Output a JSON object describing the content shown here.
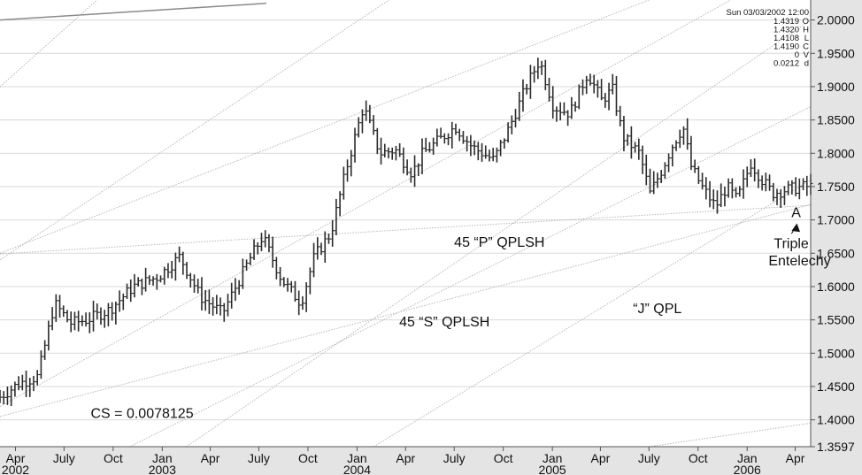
{
  "chart_data": {
    "type": "bar",
    "subtype": "ohlc",
    "y_axis": {
      "position": "right",
      "ylim": [
        1.3597,
        2.03
      ],
      "ticks": [
        "2.0000",
        "1.9500",
        "1.9000",
        "1.8500",
        "1.8000",
        "1.7500",
        "1.7000",
        "1.6500",
        "1.6000",
        "1.5500",
        "1.5000",
        "1.4500",
        "1.4000",
        "1.3597"
      ],
      "tick_values": [
        2.0,
        1.95,
        1.9,
        1.85,
        1.8,
        1.75,
        1.7,
        1.65,
        1.6,
        1.55,
        1.5,
        1.45,
        1.4,
        1.3597
      ]
    },
    "x_axis": {
      "date_range": [
        "2002-03-03",
        "2006-04-30"
      ],
      "month_ticks": [
        {
          "label": "Apr",
          "date": "2002-04-01"
        },
        {
          "label": "July",
          "date": "2002-07-01"
        },
        {
          "label": "Oct",
          "date": "2002-10-01"
        },
        {
          "label": "Jan",
          "date": "2003-01-01"
        },
        {
          "label": "Apr",
          "date": "2003-04-01"
        },
        {
          "label": "July",
          "date": "2003-07-01"
        },
        {
          "label": "Oct",
          "date": "2003-10-01"
        },
        {
          "label": "Jan",
          "date": "2004-01-01"
        },
        {
          "label": "Apr",
          "date": "2004-04-01"
        },
        {
          "label": "July",
          "date": "2004-07-01"
        },
        {
          "label": "Oct",
          "date": "2004-10-01"
        },
        {
          "label": "Jan",
          "date": "2005-01-01"
        },
        {
          "label": "Apr",
          "date": "2005-04-01"
        },
        {
          "label": "July",
          "date": "2005-07-01"
        },
        {
          "label": "Oct",
          "date": "2005-10-01"
        },
        {
          "label": "Jan",
          "date": "2006-01-01"
        },
        {
          "label": "Apr",
          "date": "2006-04-01"
        }
      ],
      "year_labels": [
        {
          "label": "2002",
          "date": "2002-04-01"
        },
        {
          "label": "2003",
          "date": "2003-01-01"
        },
        {
          "label": "2004",
          "date": "2004-01-01"
        },
        {
          "label": "2005",
          "date": "2005-01-01"
        },
        {
          "label": "2006",
          "date": "2006-01-01"
        }
      ]
    },
    "grid": true,
    "price_path": [
      {
        "date": "2002-03-03",
        "value": 1.43
      },
      {
        "date": "2002-04-15",
        "value": 1.455
      },
      {
        "date": "2002-05-20",
        "value": 1.465
      },
      {
        "date": "2002-06-20",
        "value": 1.575
      },
      {
        "date": "2002-07-20",
        "value": 1.545
      },
      {
        "date": "2002-08-20",
        "value": 1.55
      },
      {
        "date": "2002-10-01",
        "value": 1.565
      },
      {
        "date": "2002-11-15",
        "value": 1.6
      },
      {
        "date": "2003-01-01",
        "value": 1.615
      },
      {
        "date": "2003-02-10",
        "value": 1.645
      },
      {
        "date": "2003-03-20",
        "value": 1.585
      },
      {
        "date": "2003-05-01",
        "value": 1.56
      },
      {
        "date": "2003-06-20",
        "value": 1.64
      },
      {
        "date": "2003-07-15",
        "value": 1.675
      },
      {
        "date": "2003-08-20",
        "value": 1.61
      },
      {
        "date": "2003-09-25",
        "value": 1.575
      },
      {
        "date": "2003-10-20",
        "value": 1.645
      },
      {
        "date": "2003-11-20",
        "value": 1.68
      },
      {
        "date": "2003-12-20",
        "value": 1.78
      },
      {
        "date": "2004-01-20",
        "value": 1.87
      },
      {
        "date": "2004-02-20",
        "value": 1.8
      },
      {
        "date": "2004-03-20",
        "value": 1.805
      },
      {
        "date": "2004-04-20",
        "value": 1.77
      },
      {
        "date": "2004-05-10",
        "value": 1.8
      },
      {
        "date": "2004-06-10",
        "value": 1.82
      },
      {
        "date": "2004-07-10",
        "value": 1.84
      },
      {
        "date": "2004-08-10",
        "value": 1.81
      },
      {
        "date": "2004-09-20",
        "value": 1.79
      },
      {
        "date": "2004-10-20",
        "value": 1.84
      },
      {
        "date": "2004-11-20",
        "value": 1.9
      },
      {
        "date": "2004-12-15",
        "value": 1.94
      },
      {
        "date": "2005-01-10",
        "value": 1.87
      },
      {
        "date": "2005-02-10",
        "value": 1.86
      },
      {
        "date": "2005-03-15",
        "value": 1.92
      },
      {
        "date": "2005-04-10",
        "value": 1.88
      },
      {
        "date": "2005-05-01",
        "value": 1.895
      },
      {
        "date": "2005-05-20",
        "value": 1.825
      },
      {
        "date": "2005-06-20",
        "value": 1.8
      },
      {
        "date": "2005-07-10",
        "value": 1.74
      },
      {
        "date": "2005-08-01",
        "value": 1.775
      },
      {
        "date": "2005-08-20",
        "value": 1.81
      },
      {
        "date": "2005-09-10",
        "value": 1.84
      },
      {
        "date": "2005-09-25",
        "value": 1.78
      },
      {
        "date": "2005-10-15",
        "value": 1.75
      },
      {
        "date": "2005-11-10",
        "value": 1.72
      },
      {
        "date": "2005-12-01",
        "value": 1.75
      },
      {
        "date": "2005-12-20",
        "value": 1.73
      },
      {
        "date": "2006-01-15",
        "value": 1.785
      },
      {
        "date": "2006-02-05",
        "value": 1.76
      },
      {
        "date": "2006-02-25",
        "value": 1.74
      },
      {
        "date": "2006-03-20",
        "value": 1.745
      },
      {
        "date": "2006-04-25",
        "value": 1.75
      }
    ],
    "trend_lines": [
      {
        "style": "solid",
        "points": [
          [
            "2002-03-03",
            2.0
          ],
          [
            "2003-07-15",
            2.025
          ]
        ]
      },
      {
        "style": "dotted",
        "points": [
          [
            "2002-03-03",
            1.65
          ],
          [
            "2005-07-01",
            2.03
          ]
        ]
      },
      {
        "style": "dotted",
        "points": [
          [
            "2002-03-03",
            1.649
          ],
          [
            "2006-04-30",
            1.722
          ]
        ]
      },
      {
        "style": "dotted",
        "points": [
          [
            "2002-03-03",
            1.405
          ],
          [
            "2006-04-30",
            1.723
          ]
        ]
      },
      {
        "style": "dotted",
        "points": [
          [
            "2002-11-01",
            1.3597
          ],
          [
            "2006-04-30",
            1.87
          ]
        ]
      },
      {
        "style": "dotted",
        "points": [
          [
            "2004-02-01",
            1.3597
          ],
          [
            "2006-04-30",
            1.76
          ]
        ]
      },
      {
        "style": "dotted",
        "points": [
          [
            "2005-07-01",
            1.3597
          ],
          [
            "2006-04-30",
            1.395
          ]
        ]
      },
      {
        "style": "dotted",
        "points": [
          [
            "2002-03-03",
            1.9
          ],
          [
            "2002-09-01",
            2.03
          ]
        ]
      },
      {
        "style": "dotted",
        "points": [
          [
            "2002-03-03",
            1.64
          ],
          [
            "2004-03-01",
            2.03
          ]
        ]
      },
      {
        "style": "dotted",
        "points": [
          [
            "2002-03-03",
            1.42
          ],
          [
            "2005-12-01",
            2.03
          ]
        ]
      },
      {
        "style": "dotted",
        "points": [
          [
            "2003-02-15",
            1.3597
          ],
          [
            "2006-04-30",
            2.0
          ]
        ]
      }
    ],
    "annotations": [
      {
        "text": "45 “P” QPLSH",
        "date": "2004-07-01",
        "value": 1.66
      },
      {
        "text": "45 “S” QPLSH",
        "date": "2004-03-20",
        "value": 1.54
      },
      {
        "text": "“J” QPL",
        "date": "2005-06-01",
        "value": 1.56
      },
      {
        "text": "CS = 0.0078125",
        "date": "2002-08-20",
        "value": 1.403
      },
      {
        "text": "A",
        "date": "2006-03-25",
        "value": 1.704
      },
      {
        "text": "Triple",
        "date": "2006-02-20",
        "value": 1.658
      },
      {
        "text": "Entelechy",
        "date": "2006-02-10",
        "value": 1.632
      }
    ],
    "info_box": {
      "date_line": "Sun 03/03/2002 12:00",
      "rows": [
        {
          "value": "1.4319",
          "code": "O"
        },
        {
          "value": "1.4320",
          "code": "H"
        },
        {
          "value": "1.4108",
          "code": "L"
        },
        {
          "value": "1.4190",
          "code": "C"
        },
        {
          "value": "0",
          "code": "V"
        },
        {
          "value": "0.0212",
          "code": "d"
        }
      ]
    }
  }
}
